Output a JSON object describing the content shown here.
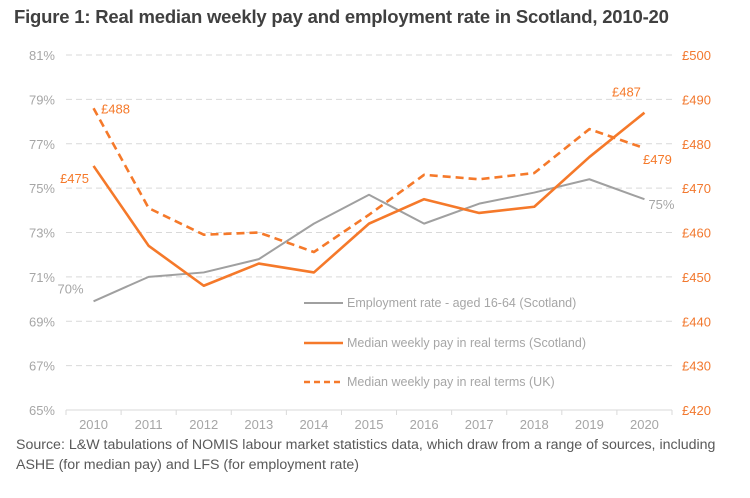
{
  "chart_data": {
    "type": "line",
    "title": "Figure 1: Real median weekly pay and employment rate in Scotland, 2010-20",
    "source": "Source: L&W tabulations of NOMIS labour market statistics data, which draw from a range of sources, including ASHE (for median pay) and LFS (for employment rate)",
    "x": [
      "2010",
      "2011",
      "2012",
      "2013",
      "2014",
      "2015",
      "2016",
      "2017",
      "2018",
      "2019",
      "2020"
    ],
    "left_axis": {
      "label": "",
      "ylim": [
        65,
        81
      ],
      "ticks": [
        65,
        67,
        69,
        71,
        73,
        75,
        77,
        79,
        81
      ],
      "tick_labels": [
        "65%",
        "67%",
        "69%",
        "71%",
        "73%",
        "75%",
        "77%",
        "79%",
        "81%"
      ]
    },
    "right_axis": {
      "label": "",
      "ylim": [
        420,
        500
      ],
      "ticks": [
        420,
        430,
        440,
        450,
        460,
        470,
        480,
        490,
        500
      ],
      "tick_labels": [
        "£420",
        "£430",
        "£440",
        "£450",
        "£460",
        "£470",
        "£480",
        "£490",
        "£500"
      ]
    },
    "grid": true,
    "legend_position": "bottom-center",
    "series": [
      {
        "name": "Employment rate - aged 16-64 (Scotland)",
        "axis": "left",
        "color": "#a0a0a0",
        "style": "solid",
        "values": [
          69.9,
          71.0,
          71.2,
          71.8,
          73.4,
          74.7,
          73.4,
          74.3,
          74.8,
          75.4,
          74.5
        ],
        "labels": [
          {
            "index": 0,
            "text": "70%"
          },
          {
            "index": 10,
            "text": "75%"
          }
        ]
      },
      {
        "name": "Median weekly pay in real terms (Scotland)",
        "axis": "right",
        "color": "#f5792a",
        "style": "solid",
        "values": [
          475,
          457,
          448,
          453,
          451,
          462,
          467.5,
          464.4,
          465.8,
          477,
          487
        ],
        "labels": [
          {
            "index": 0,
            "text": "£475"
          },
          {
            "index": 10,
            "text": "£487"
          }
        ]
      },
      {
        "name": "Median weekly pay in real terms (UK)",
        "axis": "right",
        "color": "#f5792a",
        "style": "dashed",
        "values": [
          488,
          465.5,
          459.5,
          460,
          455.6,
          464,
          473,
          472,
          473.4,
          483.3,
          479
        ],
        "labels": [
          {
            "index": 0,
            "text": "£488"
          },
          {
            "index": 10,
            "text": "£479"
          }
        ]
      }
    ]
  }
}
